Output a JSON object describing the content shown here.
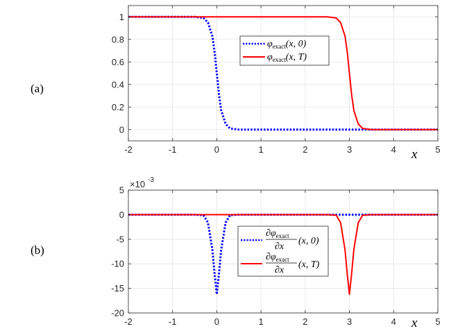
{
  "figure": {
    "panels": [
      {
        "label": "(a)"
      },
      {
        "label": "(b)",
        "exponent_base": "×10",
        "exponent_power": "-3"
      }
    ],
    "x_variable": "x"
  },
  "chart_data": [
    {
      "type": "line",
      "panel": "(a)",
      "xlabel": "x",
      "ylabel": "",
      "xlim": [
        -2,
        5
      ],
      "ylim": [
        -0.1,
        1.1
      ],
      "xticks": [
        -2,
        -1,
        0,
        1,
        2,
        3,
        4,
        5
      ],
      "yticks": [
        0,
        0.2,
        0.4,
        0.6,
        0.8,
        1
      ],
      "xtick_labels": [
        "-2",
        "-1",
        "0",
        "1",
        "2",
        "3",
        "4",
        "5"
      ],
      "ytick_labels": [
        "0",
        "0.2",
        "0.4",
        "0.6",
        "0.8",
        "1"
      ],
      "grid": true,
      "legend_position": "top-center",
      "series": [
        {
          "name": "φ_exact(x,0)",
          "color": "#0000ff",
          "style": "dotted",
          "x": [
            -2,
            -1,
            -0.5,
            -0.3,
            -0.2,
            -0.1,
            -0.05,
            0,
            0.05,
            0.1,
            0.2,
            0.3,
            0.5,
            1,
            2,
            3,
            4,
            5
          ],
          "y": [
            1,
            1,
            1,
            0.99,
            0.95,
            0.83,
            0.69,
            0.5,
            0.31,
            0.17,
            0.05,
            0.01,
            0,
            0,
            0,
            0,
            0,
            0
          ]
        },
        {
          "name": "φ_exact(x,T)",
          "color": "#ff0000",
          "style": "solid",
          "x": [
            -2,
            -1,
            0,
            1,
            2,
            2.5,
            2.7,
            2.8,
            2.9,
            2.95,
            3,
            3.05,
            3.1,
            3.2,
            3.3,
            3.5,
            4,
            5
          ],
          "y": [
            1,
            1,
            1,
            1,
            1,
            1,
            0.99,
            0.95,
            0.83,
            0.69,
            0.5,
            0.31,
            0.17,
            0.05,
            0.01,
            0,
            0,
            0
          ]
        }
      ],
      "legend": [
        {
          "base": "φ",
          "sub": "exact",
          "args": "(x, 0)"
        },
        {
          "base": "φ",
          "sub": "exact",
          "args": "(x, T)"
        }
      ]
    },
    {
      "type": "line",
      "panel": "(b)",
      "xlabel": "x",
      "ylabel": "",
      "y_multiplier": "×10^-3",
      "xlim": [
        -2,
        5
      ],
      "ylim": [
        -20,
        5
      ],
      "xticks": [
        -2,
        -1,
        0,
        1,
        2,
        3,
        4,
        5
      ],
      "yticks": [
        -20,
        -15,
        -10,
        -5,
        0,
        5
      ],
      "xtick_labels": [
        "-2",
        "-1",
        "0",
        "1",
        "2",
        "3",
        "4",
        "5"
      ],
      "ytick_labels": [
        "-20",
        "-15",
        "-10",
        "-5",
        "0",
        "5"
      ],
      "grid": true,
      "legend_position": "center-right",
      "series": [
        {
          "name": "∂φ_exact/∂x(x,0)",
          "color": "#0000ff",
          "style": "dotted",
          "x": [
            -2,
            -0.5,
            -0.3,
            -0.2,
            -0.1,
            -0.05,
            0,
            0.05,
            0.1,
            0.2,
            0.3,
            0.5,
            5
          ],
          "y": [
            0,
            0,
            -0.1,
            -1.6,
            -7.1,
            -12.0,
            -16.2,
            -12.0,
            -7.1,
            -1.6,
            -0.1,
            0,
            0
          ]
        },
        {
          "name": "∂φ_exact/∂x(x,T)",
          "color": "#ff0000",
          "style": "solid",
          "x": [
            -2,
            2.5,
            2.7,
            2.8,
            2.9,
            2.95,
            3,
            3.05,
            3.1,
            3.2,
            3.3,
            3.5,
            5
          ],
          "y": [
            0,
            0,
            -0.1,
            -1.6,
            -7.1,
            -12.0,
            -16.2,
            -12.0,
            -7.1,
            -1.6,
            -0.1,
            0,
            0
          ]
        }
      ],
      "legend": [
        {
          "base": "φ",
          "sub": "exact",
          "args": "(x, 0)"
        },
        {
          "base": "φ",
          "sub": "exact",
          "args": "(x, T)"
        }
      ]
    }
  ]
}
